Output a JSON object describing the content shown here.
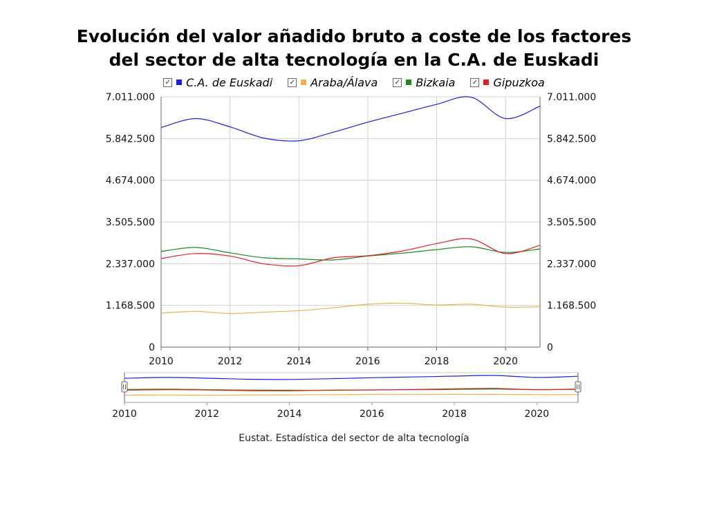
{
  "chart_data": {
    "type": "line",
    "title_line1": "Evolución del valor añadido bruto a coste de los factores",
    "title_line2": "del sector de alta tecnología en la C.A. de Euskadi",
    "x": [
      2010,
      2011,
      2012,
      2013,
      2014,
      2015,
      2016,
      2017,
      2018,
      2019,
      2020,
      2021
    ],
    "xticks": [
      "2010",
      "2012",
      "2014",
      "2016",
      "2018",
      "2020"
    ],
    "yticks": [
      "0",
      "1.168.500",
      "2.337.000",
      "3.505.500",
      "4.674.000",
      "5.842.500",
      "7.011.000"
    ],
    "ylim": [
      0,
      7011000
    ],
    "series": [
      {
        "name": "C.A. de Euskadi",
        "color": "#1a1ae6",
        "values": [
          6150000,
          6400000,
          6170000,
          5850000,
          5780000,
          6020000,
          6300000,
          6550000,
          6800000,
          7000000,
          6400000,
          6750000
        ]
      },
      {
        "name": "Araba/Álava",
        "color": "#f0b050",
        "values": [
          950000,
          1000000,
          940000,
          980000,
          1020000,
          1100000,
          1200000,
          1230000,
          1180000,
          1200000,
          1120000,
          1130000
        ]
      },
      {
        "name": "Bizkaia",
        "color": "#1a8a1a",
        "values": [
          2680000,
          2790000,
          2640000,
          2500000,
          2470000,
          2440000,
          2550000,
          2630000,
          2730000,
          2810000,
          2650000,
          2750000
        ]
      },
      {
        "name": "Gipuzkoa",
        "color": "#e02020",
        "values": [
          2480000,
          2620000,
          2550000,
          2330000,
          2280000,
          2500000,
          2560000,
          2690000,
          2900000,
          3030000,
          2620000,
          2850000
        ]
      }
    ],
    "navigator_ticks": [
      "2010",
      "2012",
      "2014",
      "2016",
      "2018",
      "2020"
    ]
  },
  "source": "Eustat. Estadística del sector de alta tecnología"
}
